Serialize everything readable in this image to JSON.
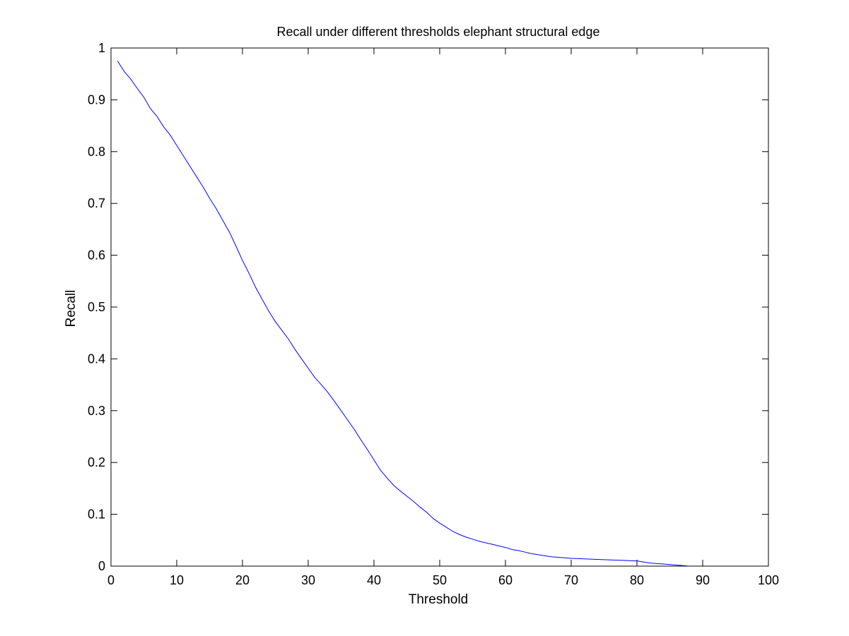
{
  "chart_data": {
    "type": "line",
    "title": "Recall under different thresholds elephant structural edge",
    "xlabel": "Threshold",
    "ylabel": "Recall",
    "xlim": [
      0,
      100
    ],
    "ylim": [
      0,
      1
    ],
    "xticks": [
      "0",
      "10",
      "20",
      "30",
      "40",
      "50",
      "60",
      "70",
      "80",
      "90",
      "100"
    ],
    "yticks": [
      "0",
      "0.1",
      "0.2",
      "0.3",
      "0.4",
      "0.5",
      "0.6",
      "0.7",
      "0.8",
      "0.9",
      "1"
    ],
    "grid": false,
    "line_color": "#0000ff",
    "series": [
      {
        "x": [
          1,
          2,
          3,
          4,
          5,
          6,
          7,
          8,
          9,
          10,
          12,
          14,
          15,
          16,
          18,
          19,
          20,
          21,
          22,
          23,
          24,
          25,
          26,
          27,
          28,
          29,
          30,
          31,
          32,
          33,
          34,
          35,
          36,
          37,
          38,
          39,
          40,
          41,
          42,
          43,
          44,
          45,
          46,
          47,
          48,
          49,
          50,
          51,
          52,
          53,
          54,
          55,
          56,
          57,
          58,
          59,
          60,
          61,
          62,
          63,
          64,
          65,
          66,
          67,
          68,
          69,
          70,
          72,
          74,
          76,
          78,
          80,
          81,
          82,
          83,
          84,
          85,
          86,
          87,
          88
        ],
        "y": [
          0.975,
          0.955,
          0.94,
          0.922,
          0.905,
          0.883,
          0.868,
          0.848,
          0.832,
          0.812,
          0.772,
          0.732,
          0.71,
          0.69,
          0.645,
          0.618,
          0.59,
          0.565,
          0.538,
          0.515,
          0.492,
          0.472,
          0.455,
          0.438,
          0.418,
          0.4,
          0.382,
          0.364,
          0.35,
          0.335,
          0.318,
          0.3,
          0.282,
          0.264,
          0.244,
          0.225,
          0.205,
          0.185,
          0.17,
          0.156,
          0.145,
          0.135,
          0.125,
          0.114,
          0.104,
          0.092,
          0.083,
          0.075,
          0.067,
          0.061,
          0.056,
          0.052,
          0.048,
          0.045,
          0.042,
          0.039,
          0.036,
          0.032,
          0.03,
          0.027,
          0.024,
          0.022,
          0.02,
          0.018,
          0.017,
          0.016,
          0.015,
          0.014,
          0.013,
          0.012,
          0.011,
          0.01,
          0.008,
          0.006,
          0.005,
          0.004,
          0.003,
          0.002,
          0.001,
          0.0
        ]
      }
    ]
  }
}
